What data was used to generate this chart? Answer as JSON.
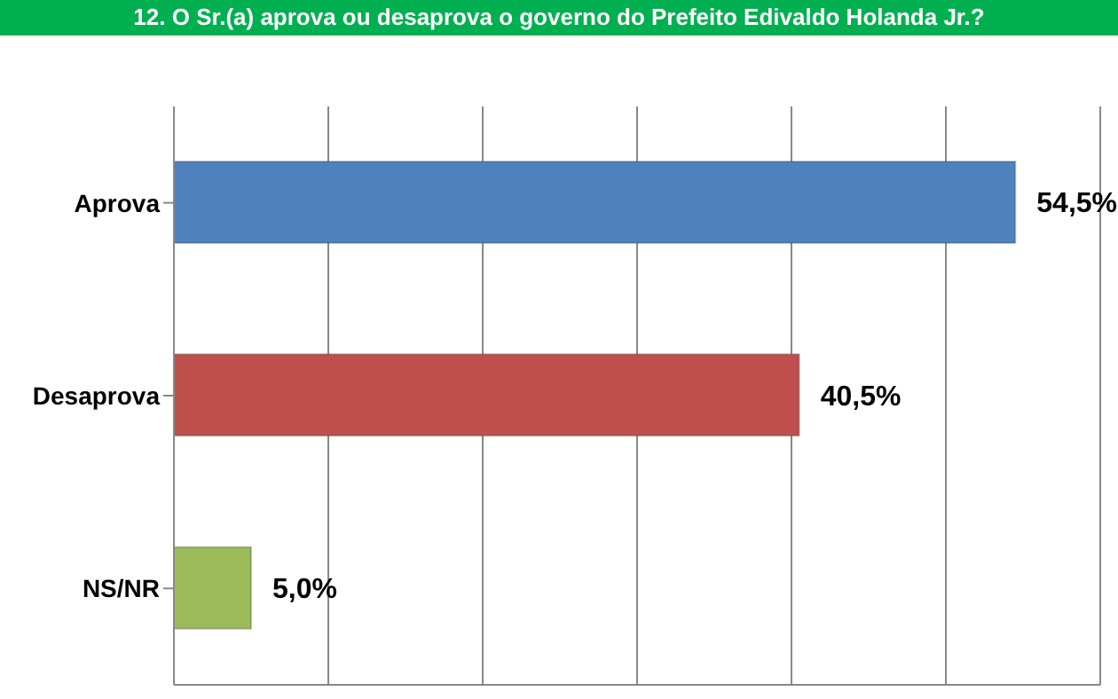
{
  "chart_data": {
    "type": "bar",
    "orientation": "horizontal",
    "title": "12. O Sr.(a) aprova ou desaprova o governo do Prefeito Edivaldo Holanda Jr.?",
    "categories": [
      "Aprova",
      "Desaprova",
      "NS/NR"
    ],
    "values": [
      54.5,
      40.5,
      5.0
    ],
    "colors": [
      "#4f81bd",
      "#c0504d",
      "#9bbb59"
    ],
    "value_labels": [
      "54,5%",
      "40,5%",
      "5,0%"
    ],
    "xlim": [
      0,
      60
    ],
    "xticks": [
      {
        "value": 0,
        "label": null
      },
      {
        "value": 10,
        "label": null
      },
      {
        "value": 20,
        "label": null
      },
      {
        "value": 30,
        "label": null
      },
      {
        "value": 40,
        "label": null
      },
      {
        "value": 50,
        "label": null
      },
      {
        "value": 60,
        "label": null
      }
    ],
    "grid": "x",
    "tick_labels": "y",
    "legend": false
  }
}
